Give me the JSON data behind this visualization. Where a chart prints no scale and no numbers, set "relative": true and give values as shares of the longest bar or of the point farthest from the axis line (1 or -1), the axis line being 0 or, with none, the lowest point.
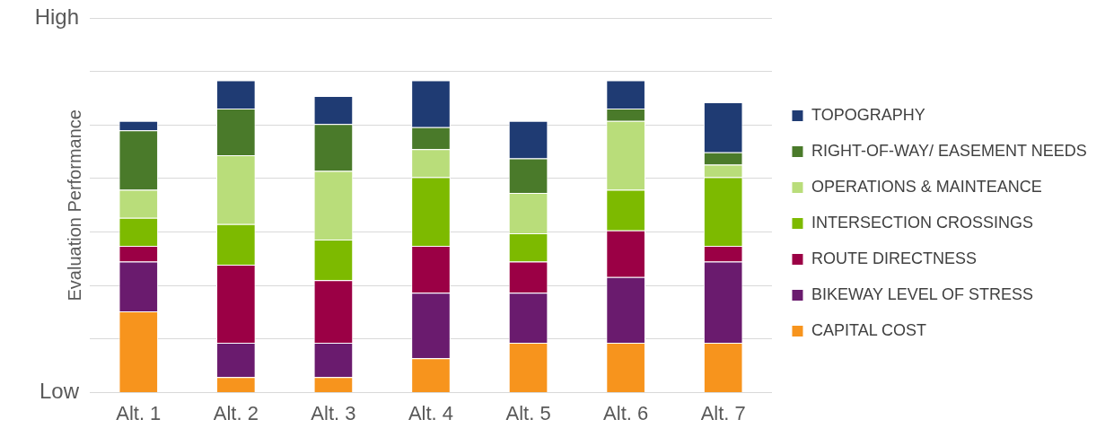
{
  "chart_data": {
    "type": "bar",
    "stacked": true,
    "relative": true,
    "ylabel": "Evaluation Performance",
    "annotations": [
      "High",
      "Low"
    ],
    "categories": [
      "Alt. 1",
      "Alt. 2",
      "Alt. 3",
      "Alt. 4",
      "Alt. 5",
      "Alt. 6",
      "Alt. 7"
    ],
    "series": [
      {
        "name": "CAPITAL COST",
        "color": "#f7941d",
        "values": [
          0.26,
          0.05,
          0.05,
          0.11,
          0.16,
          0.16,
          0.16
        ]
      },
      {
        "name": "BIKEWAY LEVEL OF STRESS",
        "color": "#6a1b6e",
        "values": [
          0.16,
          0.11,
          0.11,
          0.21,
          0.16,
          0.21,
          0.26
        ]
      },
      {
        "name": "ROUTE DIRECTNESS",
        "color": "#9b0045",
        "values": [
          0.05,
          0.25,
          0.2,
          0.15,
          0.1,
          0.15,
          0.05
        ]
      },
      {
        "name": "INTERSECTION CROSSINGS",
        "color": "#7dba00",
        "values": [
          0.09,
          0.13,
          0.13,
          0.22,
          0.09,
          0.13,
          0.22
        ]
      },
      {
        "name": "OPERATIONS & MAINTEANCE",
        "color": "#b9dd7a",
        "values": [
          0.09,
          0.22,
          0.22,
          0.09,
          0.13,
          0.22,
          0.04
        ]
      },
      {
        "name": "RIGHT-OF-WAY/ EASEMENT NEEDS",
        "color": "#4a7a2a",
        "values": [
          0.19,
          0.15,
          0.15,
          0.07,
          0.11,
          0.04,
          0.04
        ]
      },
      {
        "name": "TOPOGRAPHY",
        "color": "#1f3b73",
        "values": [
          0.03,
          0.09,
          0.09,
          0.15,
          0.12,
          0.09,
          0.16
        ]
      }
    ],
    "grid": "y",
    "legend": "right"
  }
}
